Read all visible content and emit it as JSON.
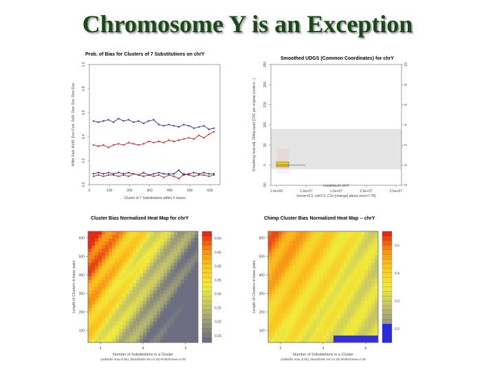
{
  "slide": {
    "title": "Chromosome Y is an Exception"
  },
  "chart_data": [
    {
      "type": "line",
      "title": "Prob. of Bias for Clusters of 7 Substitutions on chrY",
      "xlabel": "Cluster of 7 Substitutions within X bases",
      "ylabel": "WNd: Fwd, WcW: Dwn Fwd, ScW: Dwn Sho: Dwn Due",
      "xlim": [
        0,
        650
      ],
      "ylim": [
        0.0,
        1.0
      ],
      "x_ticks": [
        "0",
        "100",
        "200",
        "300",
        "400",
        "500",
        "600"
      ],
      "y_ticks": [
        "0.0",
        "0.2",
        "0.4",
        "0.6",
        "0.8",
        "1.0"
      ],
      "x": [
        20,
        45,
        70,
        95,
        120,
        145,
        170,
        195,
        220,
        245,
        270,
        295,
        320,
        345,
        370,
        395,
        420,
        445,
        470,
        495,
        520,
        545,
        570,
        595,
        620
      ],
      "series": [
        {
          "color": "#2233aa",
          "values": [
            0.53,
            0.52,
            0.53,
            0.54,
            0.52,
            0.55,
            0.53,
            0.54,
            0.52,
            0.53,
            0.51,
            0.53,
            0.54,
            0.5,
            0.49,
            0.5,
            0.49,
            0.48,
            0.5,
            0.49,
            0.47,
            0.48,
            0.49,
            0.46,
            0.47
          ]
        },
        {
          "color": "#cc2222",
          "values": [
            0.33,
            0.32,
            0.33,
            0.31,
            0.33,
            0.34,
            0.33,
            0.35,
            0.34,
            0.33,
            0.34,
            0.36,
            0.35,
            0.36,
            0.35,
            0.37,
            0.36,
            0.37,
            0.38,
            0.39,
            0.38,
            0.41,
            0.39,
            0.42,
            0.44
          ]
        },
        {
          "color": "#222266",
          "values": [
            0.09,
            0.1,
            0.09,
            0.1,
            0.09,
            0.1,
            0.09,
            0.1,
            0.09,
            0.08,
            0.1,
            0.08,
            0.09,
            0.1,
            0.09,
            0.09,
            0.09,
            0.12,
            0.08,
            0.09,
            0.1,
            0.09,
            0.1,
            0.09,
            0.09
          ]
        },
        {
          "color": "#aa2233",
          "values": [
            0.07,
            0.08,
            0.07,
            0.08,
            0.08,
            0.07,
            0.08,
            0.07,
            0.09,
            0.08,
            0.07,
            0.08,
            0.07,
            0.08,
            0.06,
            0.08,
            0.07,
            0.05,
            0.09,
            0.08,
            0.07,
            0.08,
            0.08,
            0.07,
            0.08
          ]
        }
      ]
    },
    {
      "type": "bar",
      "title": "Smoothed UDGS (Common Coordinates) for chrY",
      "xlabel": "Location on chrY",
      "ylabel": "Smoothing heat adj. 10kbp apart (C5C per original clusters...)",
      "caption": "(mean=2.5, sd=2.0, CVs [change] above zero=7.78)",
      "x_ticks": [
        "1.0e+00",
        "1.0e+07",
        "1.5e+07",
        "2.0e+07",
        "2.5e+07"
      ],
      "y_ticks_left": [
        "-50",
        "0",
        "50",
        "100",
        "150",
        "200",
        "250"
      ],
      "y_ticks_right": [
        "-2",
        "0",
        "2",
        "4",
        "6",
        "8",
        "10"
      ],
      "ylim": [
        -50,
        250
      ]
    },
    {
      "type": "heatmap",
      "title": "Cluster Bias Normalized Heat Map for chrY",
      "xlabel": "Number of Substitutions in a Cluster",
      "ylabel": "Length of Clusters in base pairs",
      "caption": "(redW/bs max=0.55), blueS/bsW min=0.15) RelbAlmean=0.35",
      "x_ticks": [
        "2",
        "4",
        "6"
      ],
      "y_ticks": [
        "100",
        "200",
        "300",
        "400",
        "500",
        "600"
      ],
      "colorbar_ticks": [
        "0.15",
        "0.20",
        "0.25",
        "0.30",
        "0.35",
        "0.40",
        "0.45",
        "0.50"
      ]
    },
    {
      "type": "heatmap",
      "title": "Chimp Cluster Bias Normalized Heat Map -- chrY",
      "xlabel": "Number of Substitutions in a Cluster",
      "ylabel": "Length of Clusters in base pairs",
      "caption": "(redW/bs max=0.55), blueS/bsW min=0.15) RelbAlmean=0.35",
      "x_ticks": [
        "2",
        "4",
        "6"
      ],
      "y_ticks": [
        "100",
        "200",
        "300",
        "400",
        "500",
        "600"
      ],
      "colorbar_ticks": [
        "0.2",
        "0.3",
        "0.4",
        "0.5"
      ]
    }
  ]
}
